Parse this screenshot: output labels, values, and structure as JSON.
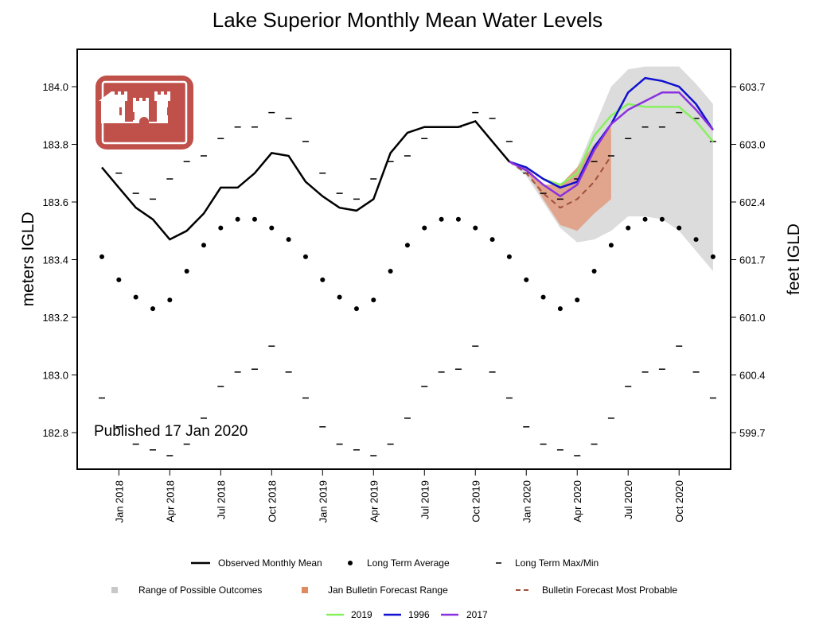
{
  "chart_data": {
    "type": "line",
    "title": "Lake Superior Monthly Mean Water Levels",
    "ylabel": "meters IGLD",
    "ylabel_right": "feet IGLD",
    "ylim": [
      182.67,
      184.13
    ],
    "grid": false,
    "annotation": "Published 17 Jan 2020",
    "months": [
      "2017-12",
      "2018-01",
      "2018-02",
      "2018-03",
      "2018-04",
      "2018-05",
      "2018-06",
      "2018-07",
      "2018-08",
      "2018-09",
      "2018-10",
      "2018-11",
      "2018-12",
      "2019-01",
      "2019-02",
      "2019-03",
      "2019-04",
      "2019-05",
      "2019-06",
      "2019-07",
      "2019-08",
      "2019-09",
      "2019-10",
      "2019-11",
      "2019-12",
      "2020-01",
      "2020-02",
      "2020-03",
      "2020-04",
      "2020-05",
      "2020-06",
      "2020-07",
      "2020-08",
      "2020-09",
      "2020-10",
      "2020-11",
      "2020-12"
    ],
    "x_ticks": [
      {
        "month": "2018-01",
        "label": "Jan 2018"
      },
      {
        "month": "2018-04",
        "label": "Apr 2018"
      },
      {
        "month": "2018-07",
        "label": "Jul 2018"
      },
      {
        "month": "2018-10",
        "label": "Oct 2018"
      },
      {
        "month": "2019-01",
        "label": "Jan 2019"
      },
      {
        "month": "2019-04",
        "label": "Apr 2019"
      },
      {
        "month": "2019-07",
        "label": "Jul 2019"
      },
      {
        "month": "2019-10",
        "label": "Oct 2019"
      },
      {
        "month": "2020-01",
        "label": "Jan 2020"
      },
      {
        "month": "2020-04",
        "label": "Apr 2020"
      },
      {
        "month": "2020-07",
        "label": "Jul 2020"
      },
      {
        "month": "2020-10",
        "label": "Oct 2020"
      }
    ],
    "y_ticks_left": [
      "182.8",
      "183.0",
      "183.2",
      "183.4",
      "183.6",
      "183.8",
      "184.0"
    ],
    "y_ticks_right": [
      "599.7",
      "600.4",
      "601.0",
      "601.7",
      "602.4",
      "603.0",
      "603.7"
    ],
    "observed": {
      "name": "Observed Monthly Mean",
      "start": "2017-12",
      "values": [
        183.72,
        183.65,
        183.58,
        183.54,
        183.47,
        183.5,
        183.56,
        183.65,
        183.65,
        183.7,
        183.77,
        183.76,
        183.67,
        183.62,
        183.58,
        183.57,
        183.61,
        183.77,
        183.84,
        183.86,
        183.86,
        183.86,
        183.88,
        183.81,
        183.74
      ]
    },
    "long_term": {
      "calendar_months": [
        "Jan",
        "Feb",
        "Mar",
        "Apr",
        "May",
        "Jun",
        "Jul",
        "Aug",
        "Sep",
        "Oct",
        "Nov",
        "Dec"
      ],
      "average": {
        "name": "Long Term Average",
        "values": [
          183.33,
          183.27,
          183.23,
          183.26,
          183.36,
          183.45,
          183.51,
          183.54,
          183.54,
          183.51,
          183.47,
          183.41
        ]
      },
      "max": {
        "name": "Long Term Max/Min",
        "values": [
          183.7,
          183.63,
          183.61,
          183.68,
          183.74,
          183.76,
          183.82,
          183.86,
          183.86,
          183.91,
          183.89,
          183.81
        ]
      },
      "min": {
        "values": [
          182.82,
          182.76,
          182.74,
          182.72,
          182.76,
          182.85,
          182.96,
          183.01,
          183.02,
          183.1,
          183.01,
          182.92
        ]
      }
    },
    "forecast": {
      "start": "2019-12",
      "range_possible": {
        "name": "Range of Possible Outcomes",
        "upper": [
          183.74,
          183.72,
          183.65,
          183.64,
          183.72,
          183.86,
          184.0,
          184.06,
          184.07,
          184.07,
          184.07,
          184.01,
          183.94
        ],
        "lower": [
          183.74,
          183.69,
          183.6,
          183.51,
          183.46,
          183.47,
          183.5,
          183.55,
          183.55,
          183.54,
          183.5,
          183.43,
          183.36
        ]
      },
      "bulletin_range": {
        "name": "Jan Bulletin Forecast Range",
        "upper": [
          183.74,
          183.72,
          183.66,
          183.66,
          183.72,
          183.8,
          183.86
        ],
        "lower": [
          183.74,
          183.71,
          183.61,
          183.52,
          183.5,
          183.56,
          183.61
        ]
      },
      "most_probable": {
        "name": "Bulletin Forecast Most Probable",
        "values": [
          183.74,
          183.7,
          183.63,
          183.58,
          183.61,
          183.67,
          183.76
        ]
      },
      "analog_series": [
        {
          "name": "2019",
          "values": [
            183.74,
            183.72,
            183.68,
            183.66,
            183.7,
            183.83,
            183.9,
            183.94,
            183.93,
            183.93,
            183.93,
            183.88,
            183.81
          ]
        },
        {
          "name": "1996",
          "values": [
            183.74,
            183.72,
            183.68,
            183.65,
            183.67,
            183.79,
            183.87,
            183.98,
            184.03,
            184.02,
            184.0,
            183.94,
            183.85
          ]
        },
        {
          "name": "2017",
          "values": [
            183.74,
            183.71,
            183.66,
            183.62,
            183.66,
            183.78,
            183.87,
            183.92,
            183.95,
            183.98,
            183.98,
            183.92,
            183.85
          ]
        }
      ]
    },
    "colors": {
      "observed": "#000000",
      "range_possible": "#dcdcdc",
      "bulletin_range": "#e0a58c",
      "most_probable": "#a0503c",
      "2019": "#88f060",
      "1996": "#1010d0",
      "2017": "#8a30e0",
      "logo": "#c0504a"
    },
    "legend": {
      "placement": "bottom",
      "row1": [
        "Observed Monthly Mean",
        "Long Term Average",
        "Long Term Max/Min"
      ],
      "row2": [
        "Range of Possible Outcomes",
        "Jan Bulletin Forecast Range",
        "Bulletin Forecast Most Probable"
      ],
      "row3": [
        "2019",
        "1996",
        "2017"
      ]
    },
    "logo": "castle-logo"
  }
}
